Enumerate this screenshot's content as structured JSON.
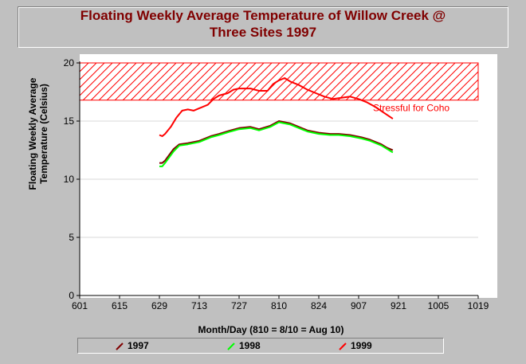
{
  "chart_data": {
    "type": "line",
    "title_lines": [
      "Floating Weekly Average Temperature of Willow Creek @",
      "Three Sites 1997"
    ],
    "ylabel_lines": [
      "Floating Weekly Average",
      "Temperature (Celsius)"
    ],
    "xlabel": "Month/Day (810 = 8/10 = Aug 10)",
    "ylim": [
      0,
      20
    ],
    "yticks": [
      "0",
      "5",
      "10",
      "15",
      "20"
    ],
    "xticks": [
      "601",
      "615",
      "629",
      "713",
      "727",
      "810",
      "824",
      "907",
      "921",
      "1005",
      "1019"
    ],
    "xlim_days": [
      0,
      140
    ],
    "threshold": {
      "y_low": 16.8,
      "y_high": 20,
      "label": "Stressful for Coho",
      "color": "#ff0000"
    },
    "series": [
      {
        "name": "1997",
        "color": "#800000",
        "x_days": [
          28,
          29,
          30,
          33,
          35,
          38,
          42,
          46,
          49,
          53,
          56,
          60,
          63,
          67,
          70,
          74,
          77,
          80,
          84,
          88,
          91,
          95,
          99,
          102,
          106,
          108,
          110
        ],
        "y": [
          11.4,
          11.4,
          11.6,
          12.6,
          13.0,
          13.1,
          13.3,
          13.7,
          13.9,
          14.2,
          14.4,
          14.5,
          14.3,
          14.6,
          15.0,
          14.8,
          14.5,
          14.2,
          14.0,
          13.9,
          13.9,
          13.8,
          13.6,
          13.4,
          13.0,
          12.7,
          12.5
        ]
      },
      {
        "name": "1998",
        "color": "#00ff00",
        "x_days": [
          28,
          29,
          30,
          33,
          35,
          38,
          42,
          46,
          49,
          53,
          56,
          60,
          63,
          67,
          70,
          74,
          77,
          80,
          84,
          88,
          91,
          95,
          99,
          102,
          106,
          108,
          110
        ],
        "y": [
          11.1,
          11.1,
          11.4,
          12.4,
          12.9,
          13.0,
          13.2,
          13.6,
          13.8,
          14.1,
          14.3,
          14.4,
          14.2,
          14.5,
          14.9,
          14.7,
          14.4,
          14.1,
          13.9,
          13.8,
          13.8,
          13.7,
          13.5,
          13.3,
          12.9,
          12.6,
          12.3
        ]
      },
      {
        "name": "1999",
        "color": "#ff0000",
        "x_days": [
          28,
          29,
          30,
          32,
          34,
          36,
          38,
          40,
          42,
          45,
          47,
          49,
          52,
          54,
          56,
          58,
          60,
          63,
          66,
          68,
          70,
          72,
          74,
          77,
          80,
          83,
          86,
          89,
          92,
          95,
          98,
          101,
          104,
          107,
          110
        ],
        "y": [
          13.8,
          13.7,
          13.9,
          14.5,
          15.3,
          15.9,
          16.0,
          15.9,
          16.1,
          16.4,
          16.9,
          17.2,
          17.4,
          17.7,
          17.8,
          17.8,
          17.8,
          17.6,
          17.6,
          18.2,
          18.5,
          18.7,
          18.4,
          18.1,
          17.7,
          17.4,
          17.1,
          16.9,
          17.0,
          17.1,
          16.9,
          16.6,
          16.2,
          15.7,
          15.2
        ]
      }
    ]
  },
  "legend": {
    "items": [
      {
        "label": "1997",
        "color": "#800000"
      },
      {
        "label": "1998",
        "color": "#00ff00"
      },
      {
        "label": "1999",
        "color": "#ff0000"
      }
    ]
  }
}
